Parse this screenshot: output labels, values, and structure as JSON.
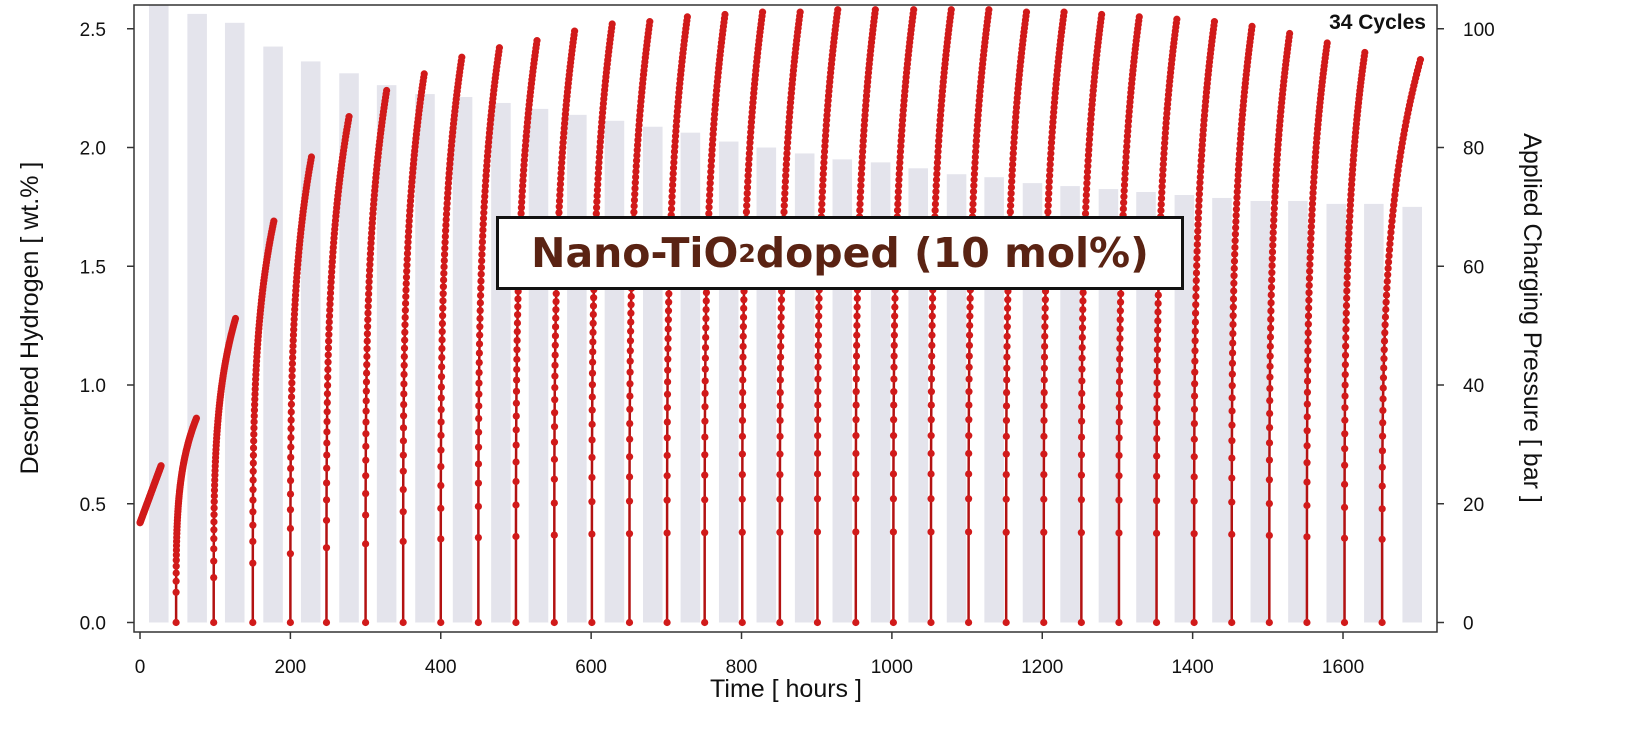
{
  "chart_data": {
    "type": "bar+scatter",
    "xlabel": "Time  [ hours ]",
    "ylabel_left": "Desorbed Hydrogen  [ wt.% ]",
    "ylabel_right": "Applied Charging Pressure  [ bar ]",
    "xlim": [
      -8,
      1725
    ],
    "ylim_left": [
      -0.04,
      2.6
    ],
    "ylim_right": [
      -1.6,
      104
    ],
    "xticks": [
      0,
      200,
      400,
      600,
      800,
      1000,
      1200,
      1400,
      1600
    ],
    "yticks_left": [
      "0.0",
      "0.5",
      "1.0",
      "1.5",
      "2.0",
      "2.5"
    ],
    "yticks_right": [
      0,
      20,
      40,
      60,
      80,
      100
    ],
    "grid": false,
    "annotation": {
      "prefix": "Nano-TiO",
      "subscript": "2",
      "suffix": " doped (10 mol%)"
    },
    "cycles_label": "34 Cycles",
    "pressure_bars": {
      "name": "Applied Charging Pressure",
      "color": "#e4e4ec",
      "bar_width_hours": 26,
      "x": [
        25,
        76,
        126,
        177,
        227,
        278,
        328,
        379,
        429,
        480,
        530,
        581,
        631,
        682,
        732,
        783,
        833,
        884,
        934,
        985,
        1035,
        1086,
        1136,
        1187,
        1237,
        1288,
        1338,
        1389,
        1439,
        1490,
        1540,
        1591,
        1641,
        1692
      ],
      "values": [
        104,
        102.5,
        101,
        97,
        94.5,
        92.5,
        90.5,
        89,
        88.5,
        87.5,
        86.5,
        85.5,
        84.5,
        83.5,
        82.5,
        81,
        80,
        79,
        78,
        77.5,
        76.5,
        75.5,
        75,
        74,
        73.5,
        73,
        72.5,
        72,
        71.5,
        71,
        71,
        70.5,
        70.5,
        70
      ]
    },
    "desorption_cycles": {
      "name": "Desorbed Hydrogen",
      "color": "#d11a1a",
      "start_hours": [
        0,
        48,
        98,
        150,
        200,
        248,
        300,
        350,
        400,
        450,
        500,
        551,
        601,
        651,
        701,
        751,
        801,
        851,
        901,
        952,
        1002,
        1052,
        1102,
        1152,
        1202,
        1252,
        1302,
        1352,
        1402,
        1452,
        1502,
        1552,
        1602,
        1652
      ],
      "end_hours": [
        28,
        75,
        127,
        178,
        228,
        278,
        328,
        378,
        428,
        478,
        528,
        578,
        628,
        678,
        728,
        778,
        828,
        878,
        928,
        978,
        1029,
        1079,
        1129,
        1179,
        1229,
        1279,
        1329,
        1379,
        1429,
        1479,
        1529,
        1579,
        1629,
        1703
      ],
      "start_values": [
        0.42,
        0,
        0,
        0,
        0,
        0,
        0,
        0,
        0,
        0,
        0,
        0,
        0,
        0,
        0,
        0,
        0,
        0,
        0,
        0,
        0,
        0,
        0,
        0,
        0,
        0,
        0,
        0,
        0,
        0,
        0,
        0,
        0,
        0
      ],
      "end_values": [
        0.66,
        0.86,
        1.28,
        1.69,
        1.96,
        2.13,
        2.24,
        2.31,
        2.38,
        2.42,
        2.45,
        2.49,
        2.52,
        2.53,
        2.55,
        2.56,
        2.57,
        2.57,
        2.58,
        2.58,
        2.58,
        2.58,
        2.58,
        2.57,
        2.57,
        2.56,
        2.55,
        2.54,
        2.53,
        2.51,
        2.48,
        2.44,
        2.4,
        2.37
      ]
    }
  }
}
